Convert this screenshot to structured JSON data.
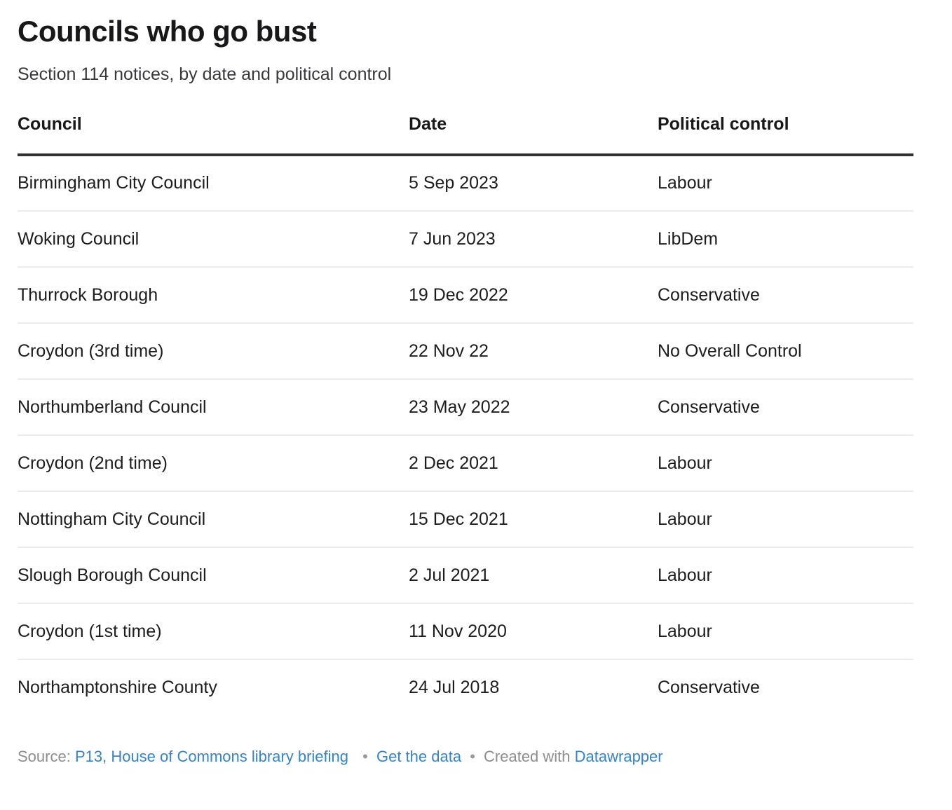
{
  "header": {
    "title": "Councils who go bust",
    "subtitle": "Section 114 notices, by date and political control"
  },
  "table": {
    "columns": [
      "Council",
      "Date",
      "Political control"
    ],
    "rows": [
      {
        "council": "Birmingham City Council",
        "date": "5 Sep 2023",
        "political_control": "Labour"
      },
      {
        "council": "Woking Council",
        "date": "7 Jun 2023",
        "political_control": "LibDem"
      },
      {
        "council": "Thurrock Borough",
        "date": "19 Dec 2022",
        "political_control": "Conservative"
      },
      {
        "council": "Croydon (3rd time)",
        "date": "22 Nov 22",
        "political_control": "No Overall Control"
      },
      {
        "council": "Northumberland Council",
        "date": "23 May 2022",
        "political_control": "Conservative"
      },
      {
        "council": "Croydon (2nd time)",
        "date": "2 Dec 2021",
        "political_control": "Labour"
      },
      {
        "council": "Nottingham City Council",
        "date": "15 Dec 2021",
        "political_control": "Labour"
      },
      {
        "council": "Slough Borough Council",
        "date": "2 Jul 2021",
        "political_control": "Labour"
      },
      {
        "council": "Croydon (1st time)",
        "date": "11 Nov 2020",
        "political_control": "Labour"
      },
      {
        "council": "Northamptonshire County",
        "date": "24 Jul 2018",
        "political_control": "Conservative"
      }
    ]
  },
  "footer": {
    "source_label": "Source:",
    "source_link_text": "P13, House of Commons library briefing",
    "separator": "•",
    "get_data_label": "Get the data",
    "created_with_label": "Created with",
    "datawrapper_label": "Datawrapper"
  },
  "colors": {
    "link_blue": "#3584c6",
    "body_text": "#1d1d1d",
    "muted_gray": "#8d8d8d",
    "header_rule": "#333333",
    "row_divider": "#ededed"
  },
  "chart_data": {
    "type": "table",
    "title": "Councils who go bust",
    "subtitle": "Section 114 notices, by date and political control",
    "columns": [
      "Council",
      "Date",
      "Political control"
    ],
    "rows": [
      [
        "Birmingham City Council",
        "5 Sep 2023",
        "Labour"
      ],
      [
        "Woking Council",
        "7 Jun 2023",
        "LibDem"
      ],
      [
        "Thurrock Borough",
        "19 Dec 2022",
        "Conservative"
      ],
      [
        "Croydon (3rd time)",
        "22 Nov 22",
        "No Overall Control"
      ],
      [
        "Northumberland Council",
        "23 May 2022",
        "Conservative"
      ],
      [
        "Croydon (2nd time)",
        "2 Dec 2021",
        "Labour"
      ],
      [
        "Nottingham City Council",
        "15 Dec 2021",
        "Labour"
      ],
      [
        "Slough Borough Council",
        "2 Jul 2021",
        "Labour"
      ],
      [
        "Croydon (1st time)",
        "11 Nov 2020",
        "Labour"
      ],
      [
        "Northamptonshire County",
        "24 Jul 2018",
        "Conservative"
      ]
    ],
    "source": "P13, House of Commons library briefing",
    "created_with": "Datawrapper"
  }
}
